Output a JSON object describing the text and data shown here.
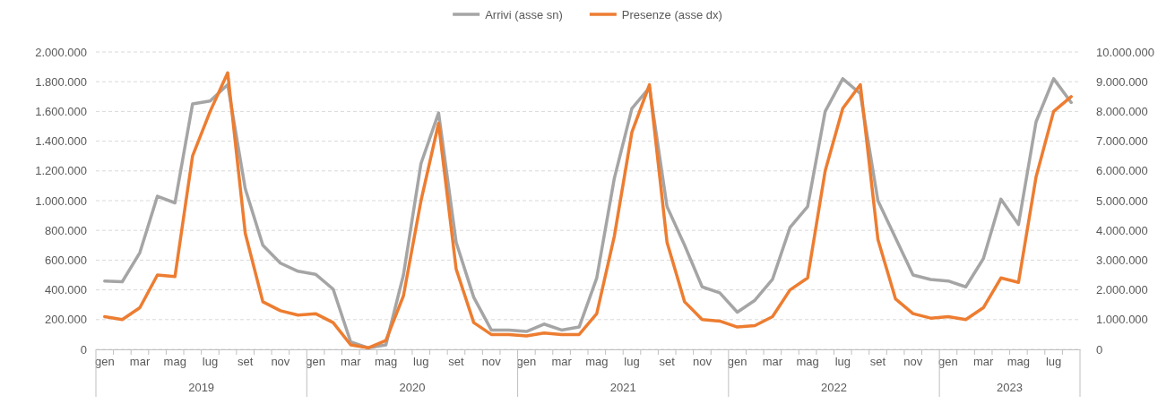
{
  "chart_data": {
    "type": "line",
    "categories": [
      "gen",
      null,
      "mar",
      null,
      "mag",
      null,
      "lug",
      null,
      "set",
      null,
      "nov",
      null,
      "gen",
      null,
      "mar",
      null,
      "mag",
      null,
      "lug",
      null,
      "set",
      null,
      "nov",
      null,
      "gen",
      null,
      "mar",
      null,
      "mag",
      null,
      "lug",
      null,
      "set",
      null,
      "nov",
      null,
      "gen",
      null,
      "mar",
      null,
      "mag",
      null,
      "lug",
      null,
      "set",
      null,
      "nov",
      null,
      "gen",
      null,
      "mar",
      null,
      "mag",
      null,
      "lug",
      null
    ],
    "series": [
      {
        "name": "Arrivi (asse sn)",
        "color": "#a5a5a5",
        "values": [
          460000,
          455000,
          650000,
          1030000,
          985000,
          1650000,
          1670000,
          1780000,
          1080000,
          700000,
          580000,
          525000,
          505000,
          405000,
          50000,
          10000,
          30000,
          500000,
          1250000,
          1590000,
          720000,
          350000,
          130000,
          130000,
          120000,
          170000,
          130000,
          150000,
          480000,
          1150000,
          1620000,
          1760000,
          960000,
          700000,
          420000,
          380000,
          250000,
          330000,
          470000,
          820000,
          960000,
          1600000,
          1820000,
          1720000,
          1000000,
          750000,
          500000,
          470000,
          460000,
          420000,
          610000,
          1010000,
          840000,
          1530000,
          1820000,
          1660000
        ]
      },
      {
        "name": "Presenze (asse dx)",
        "color": "#ed7d31",
        "axis": "y2",
        "values": [
          1100000,
          1000000,
          1400000,
          2500000,
          2450000,
          6500000,
          8000000,
          9300000,
          3900000,
          1600000,
          1300000,
          1150000,
          1200000,
          900000,
          150000,
          50000,
          300000,
          1800000,
          5000000,
          7600000,
          2700000,
          900000,
          500000,
          500000,
          450000,
          550000,
          500000,
          500000,
          1200000,
          3800000,
          7300000,
          8900000,
          3600000,
          1600000,
          1000000,
          950000,
          750000,
          800000,
          1100000,
          2000000,
          2400000,
          6000000,
          8100000,
          8900000,
          3700000,
          1700000,
          1200000,
          1050000,
          1100000,
          1000000,
          1400000,
          2400000,
          2250000,
          5800000,
          8000000,
          8500000
        ]
      }
    ],
    "ylim": [
      0,
      2000000
    ],
    "yticks": [
      0,
      {
        "value": 200000,
        "label": "200.000"
      },
      {
        "value": 400000,
        "label": "400.000"
      },
      {
        "value": 600000,
        "label": "600.000"
      },
      {
        "value": 800000,
        "label": "800.000"
      },
      {
        "value": 1000000,
        "label": "1.000.000"
      },
      {
        "value": 1200000,
        "label": "1.200.000"
      },
      {
        "value": 1400000,
        "label": "1.400.000"
      },
      {
        "value": 1600000,
        "label": "1.600.000"
      },
      {
        "value": 1800000,
        "label": "1.800.000"
      },
      {
        "value": 2000000,
        "label": "2.000.000"
      }
    ],
    "y2lim": [
      0,
      10000000
    ],
    "y2ticks": [
      0,
      {
        "value": 1000000,
        "label": "1.000.000"
      },
      {
        "value": 2000000,
        "label": "2.000.000"
      },
      {
        "value": 3000000,
        "label": "3.000.000"
      },
      {
        "value": 4000000,
        "label": "4.000.000"
      },
      {
        "value": 5000000,
        "label": "5.000.000"
      },
      {
        "value": 6000000,
        "label": "6.000.000"
      },
      {
        "value": 7000000,
        "label": "7.000.000"
      },
      {
        "value": 8000000,
        "label": "8.000.000"
      },
      {
        "value": 9000000,
        "label": "9.000.000"
      },
      {
        "value": 10000000,
        "label": "10.000.000"
      }
    ],
    "annotations": [
      "2019",
      "2020",
      "2021",
      "2022",
      "2023"
    ],
    "grid": "y",
    "legend": "top",
    "marker": "none",
    "line_style": "solid"
  }
}
